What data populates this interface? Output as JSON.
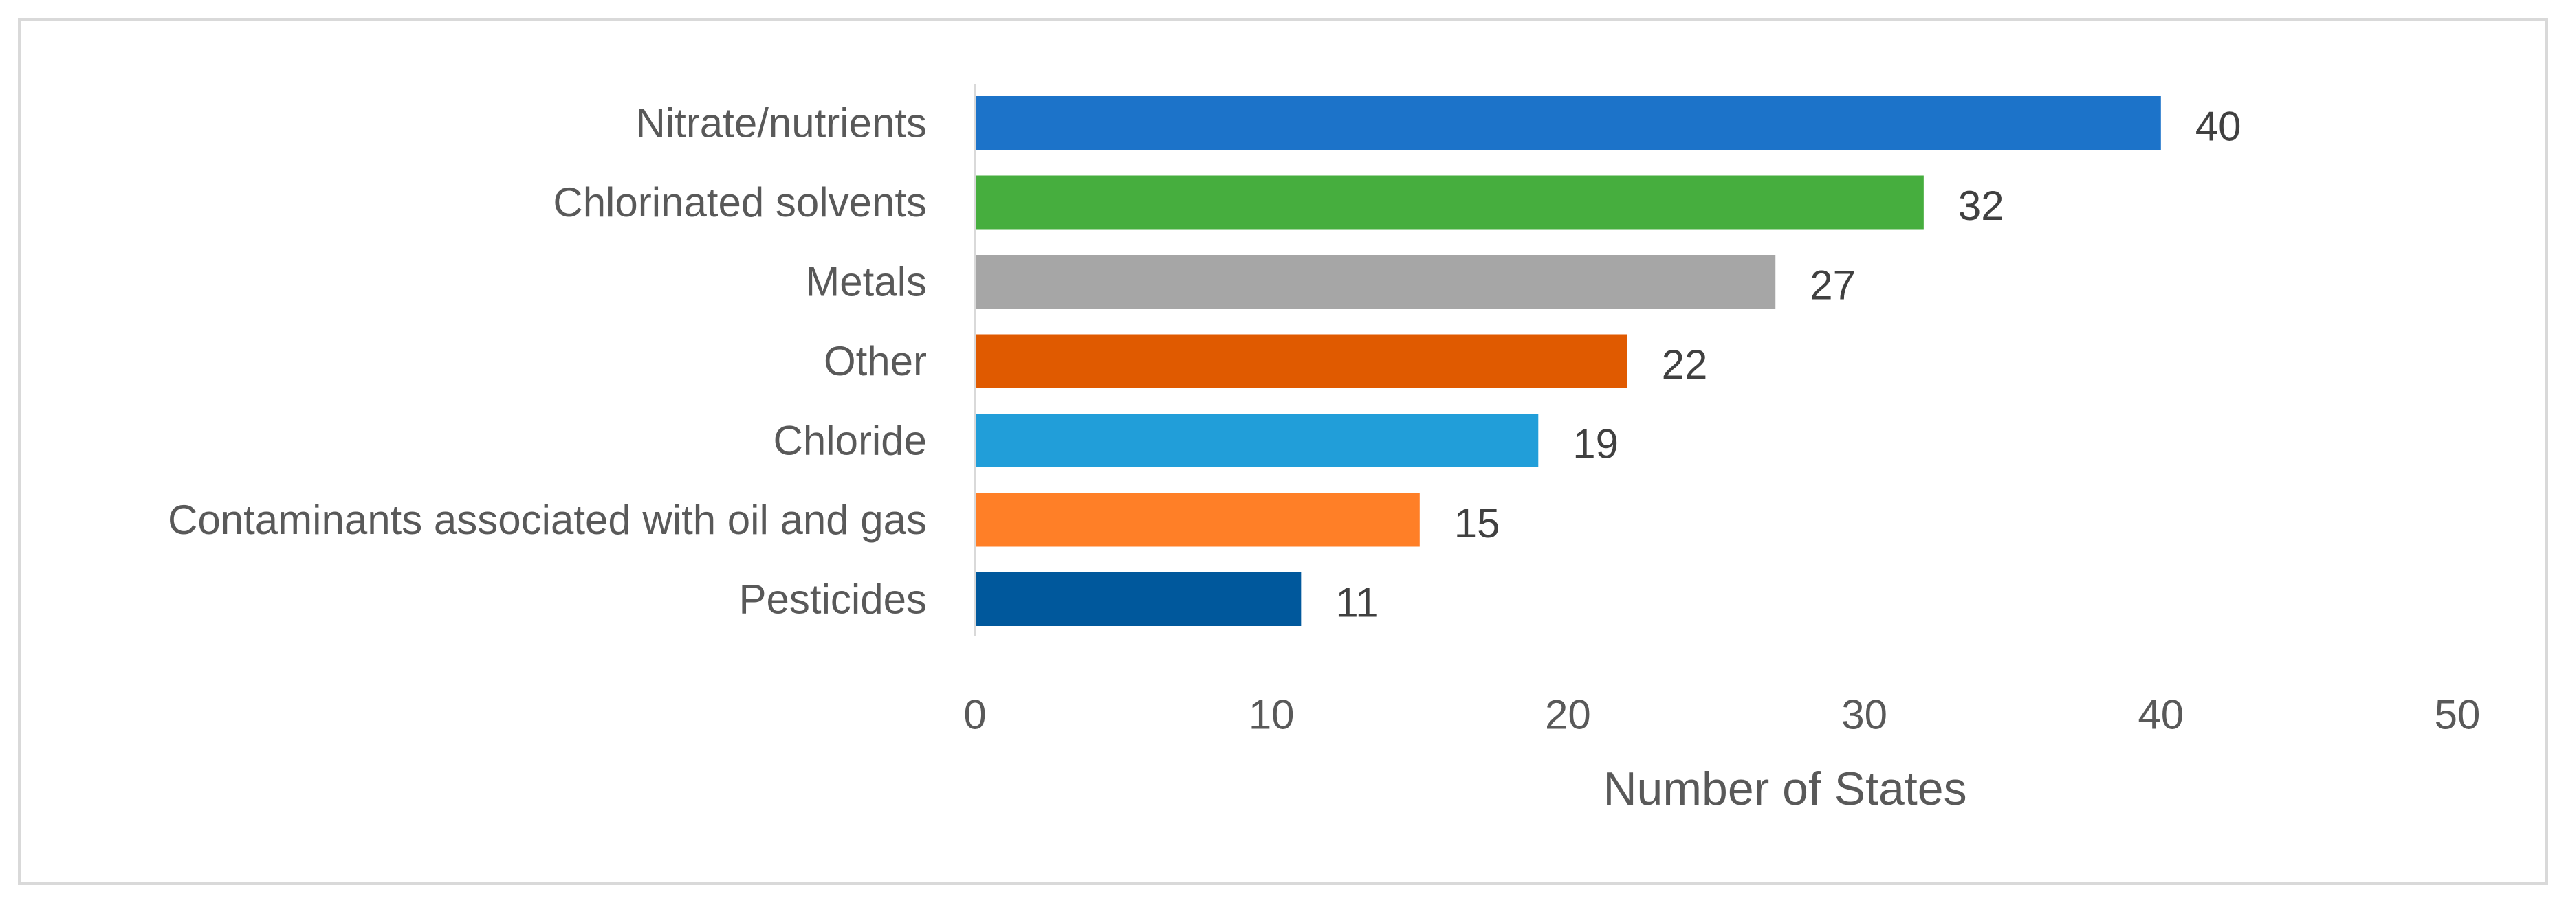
{
  "chart_data": {
    "type": "bar",
    "orientation": "horizontal",
    "title": "",
    "xlabel": "Number of States",
    "ylabel": "",
    "xlim": [
      0,
      50
    ],
    "xticks": [
      0,
      10,
      20,
      30,
      40,
      50
    ],
    "grid": false,
    "legend": "none",
    "categories": [
      "Nitrate/nutrients",
      "Chlorinated solvents",
      "Metals",
      "Other",
      "Chloride",
      "Contaminants associated with oil and gas",
      "Pesticides"
    ],
    "values": [
      40,
      32,
      27,
      22,
      19,
      15,
      11
    ],
    "colors": [
      "#1c73c9",
      "#46ae3e",
      "#a6a6a6",
      "#e05a00",
      "#219ed9",
      "#ff7f27",
      "#00589c"
    ]
  }
}
